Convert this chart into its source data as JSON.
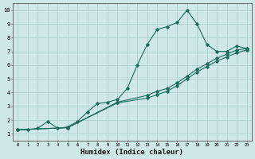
{
  "xlabel": "Humidex (Indice chaleur)",
  "ylabel": "",
  "xlim": [
    -0.5,
    23.5
  ],
  "ylim": [
    0.5,
    10.5
  ],
  "xticks": [
    0,
    1,
    2,
    3,
    4,
    5,
    6,
    7,
    8,
    9,
    10,
    11,
    12,
    13,
    14,
    15,
    16,
    17,
    18,
    19,
    20,
    21,
    22,
    23
  ],
  "yticks": [
    1,
    2,
    3,
    4,
    5,
    6,
    7,
    8,
    9,
    10
  ],
  "bg_color": "#cde8e6",
  "grid_color": "#aecfcc",
  "line_color": "#1a6b5a",
  "curve1_x": [
    0,
    1,
    2,
    3,
    4,
    5,
    6,
    7,
    8,
    9,
    10,
    11,
    12,
    13,
    14,
    15,
    16,
    17,
    18,
    19,
    20,
    21,
    22,
    23
  ],
  "curve1_y": [
    1.3,
    1.3,
    1.4,
    1.9,
    1.4,
    1.5,
    1.9,
    2.6,
    3.2,
    3.3,
    3.5,
    4.3,
    6.0,
    7.5,
    8.6,
    8.8,
    9.1,
    10.0,
    9.0,
    7.5,
    7.0,
    7.0,
    7.4,
    7.2
  ],
  "curve2_x": [
    0,
    5,
    10,
    13,
    14,
    15,
    16,
    17,
    18,
    19,
    20,
    21,
    22,
    23
  ],
  "curve2_y": [
    1.3,
    1.45,
    3.3,
    3.8,
    4.1,
    4.3,
    4.7,
    5.2,
    5.7,
    6.1,
    6.5,
    6.8,
    7.1,
    7.2
  ],
  "curve3_x": [
    0,
    5,
    10,
    13,
    14,
    15,
    16,
    17,
    18,
    19,
    20,
    21,
    22,
    23
  ],
  "curve3_y": [
    1.3,
    1.45,
    3.25,
    3.6,
    3.85,
    4.1,
    4.5,
    5.0,
    5.5,
    5.9,
    6.3,
    6.6,
    6.9,
    7.1
  ]
}
